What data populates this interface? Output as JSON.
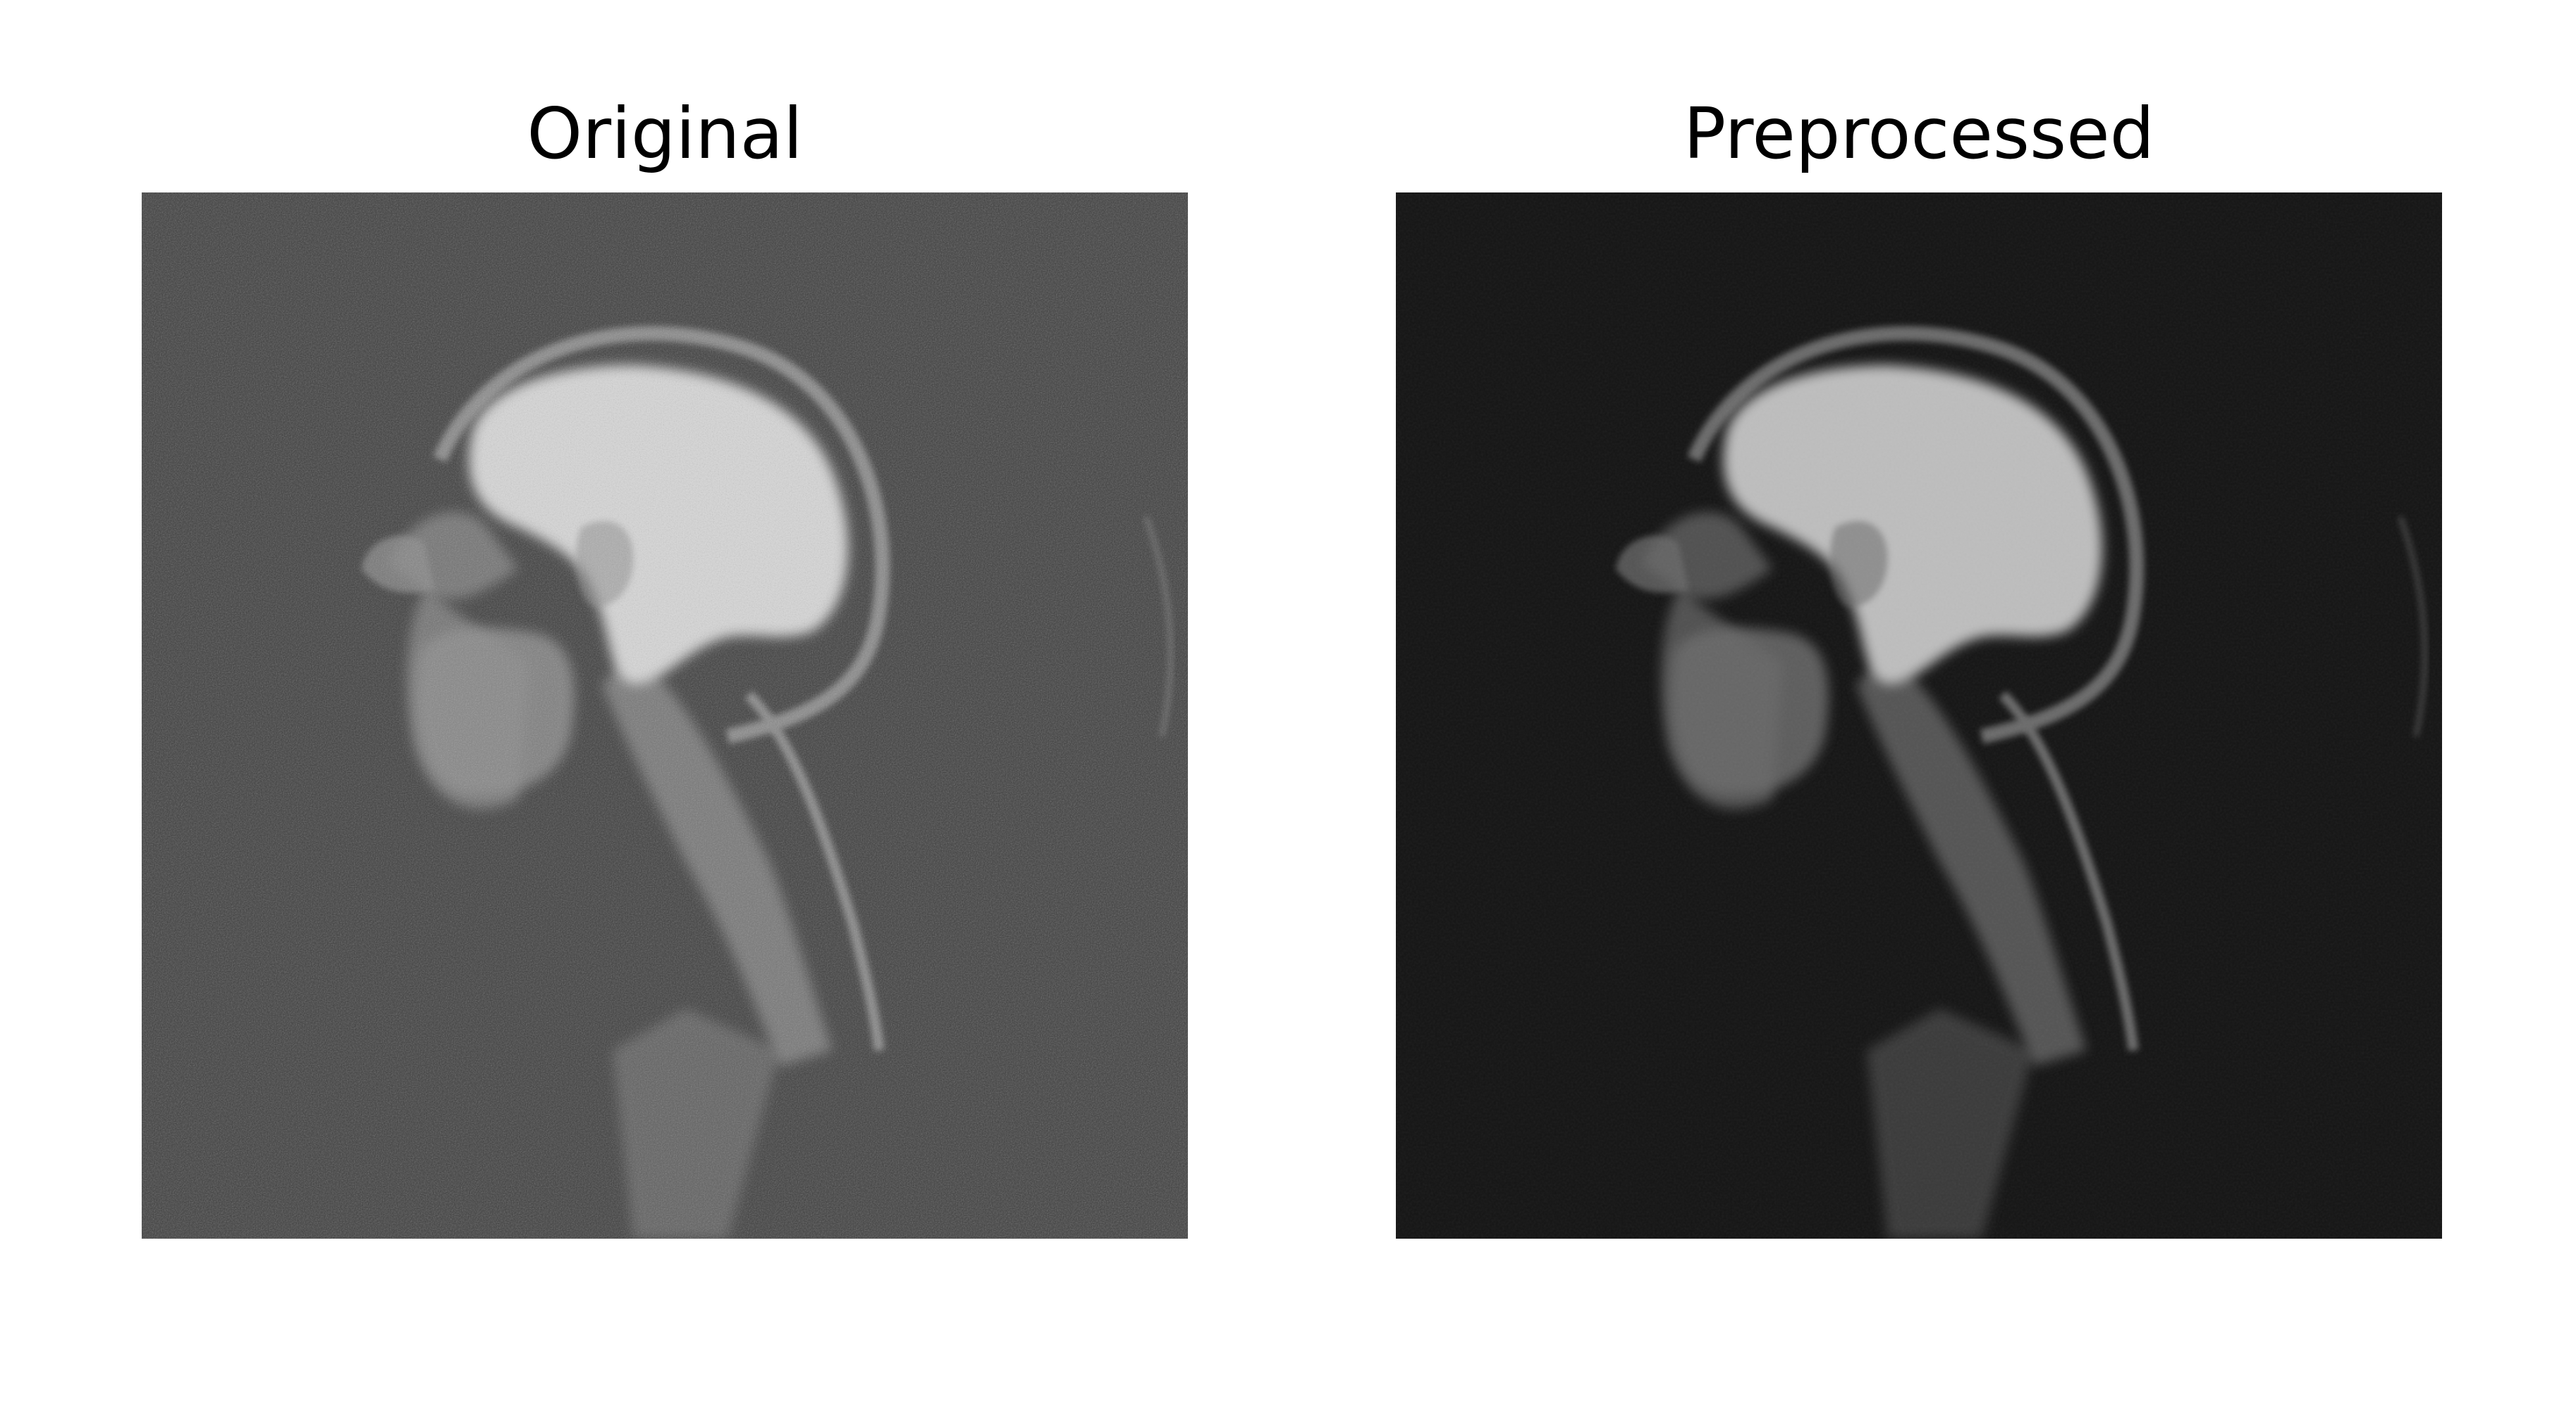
{
  "panels": [
    {
      "title": "Original",
      "image": "sagittal-head-mri-noisy",
      "background_color": "#3f3f3f",
      "tissue_color": "#8a8a8a",
      "bright_color": "#d6d6d6"
    },
    {
      "title": "Preprocessed",
      "image": "sagittal-head-mri-denoised",
      "background_color": "#141414",
      "tissue_color": "#6a6a6a",
      "bright_color": "#bdbdbd"
    }
  ]
}
